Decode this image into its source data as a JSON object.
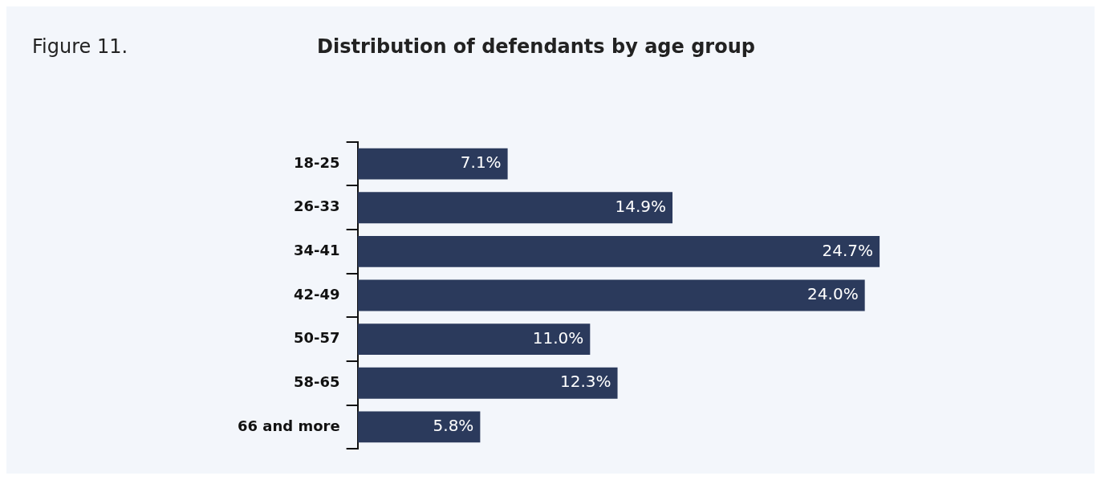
{
  "chart_data": {
    "type": "bar",
    "orientation": "horizontal",
    "title": "Distribution of defendants by age group",
    "annotations": [
      "Figure 11."
    ],
    "categories": [
      "18-25",
      "26-33",
      "34-41",
      "42-49",
      "50-57",
      "58-65",
      "66 and more"
    ],
    "values": [
      7.1,
      14.9,
      24.7,
      24.0,
      11.0,
      12.3,
      5.8
    ],
    "value_labels": [
      "7.1%",
      "14.9%",
      "24.7%",
      "24.0%",
      "11.0%",
      "12.3%",
      "5.8%"
    ],
    "color": "#2b3a5c"
  }
}
